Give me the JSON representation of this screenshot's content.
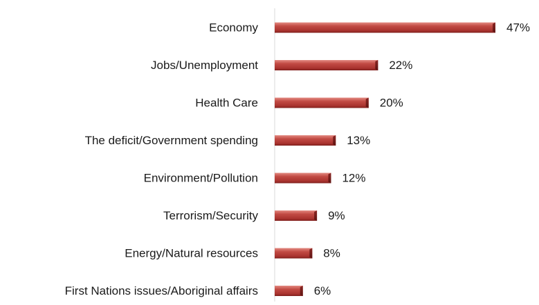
{
  "chart_data": {
    "type": "bar",
    "orientation": "horizontal",
    "categories": [
      "Economy",
      "Jobs/Unemployment",
      "Health Care",
      "The deficit/Government spending",
      "Environment/Pollution",
      "Terrorism/Security",
      "Energy/Natural resources",
      "First Nations issues/Aboriginal affairs"
    ],
    "values": [
      47,
      22,
      20,
      13,
      12,
      9,
      8,
      6
    ],
    "value_labels": [
      "47%",
      "22%",
      "20%",
      "13%",
      "12%",
      "9%",
      "8%",
      "6%"
    ],
    "unit": "%",
    "title": "",
    "xlabel": "",
    "ylabel": "",
    "xlim": [
      0,
      50
    ],
    "grid": false,
    "legend": "none",
    "bar_color": "#b03a36"
  }
}
